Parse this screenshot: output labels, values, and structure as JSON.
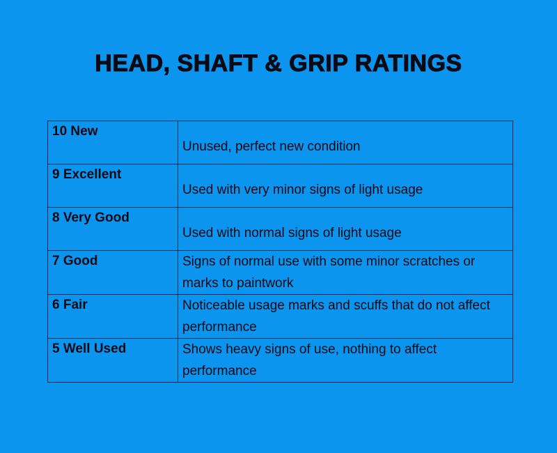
{
  "title": "HEAD, SHAFT & GRIP RATINGS",
  "rows": [
    {
      "rating": "10 New",
      "description": "Unused, perfect new condition"
    },
    {
      "rating": "9 Excellent",
      "description": "Used with very minor signs of light usage"
    },
    {
      "rating": "8 Very Good",
      "description": "Used with normal signs of light usage"
    },
    {
      "rating": "7 Good",
      "description": "Signs of normal use with some minor scratches or marks to paintwork"
    },
    {
      "rating": "6 Fair",
      "description": "Noticeable usage marks and scuffs that do not affect performance"
    },
    {
      "rating": "5 Well Used",
      "description": "Shows heavy signs of use, nothing to affect performance"
    }
  ]
}
